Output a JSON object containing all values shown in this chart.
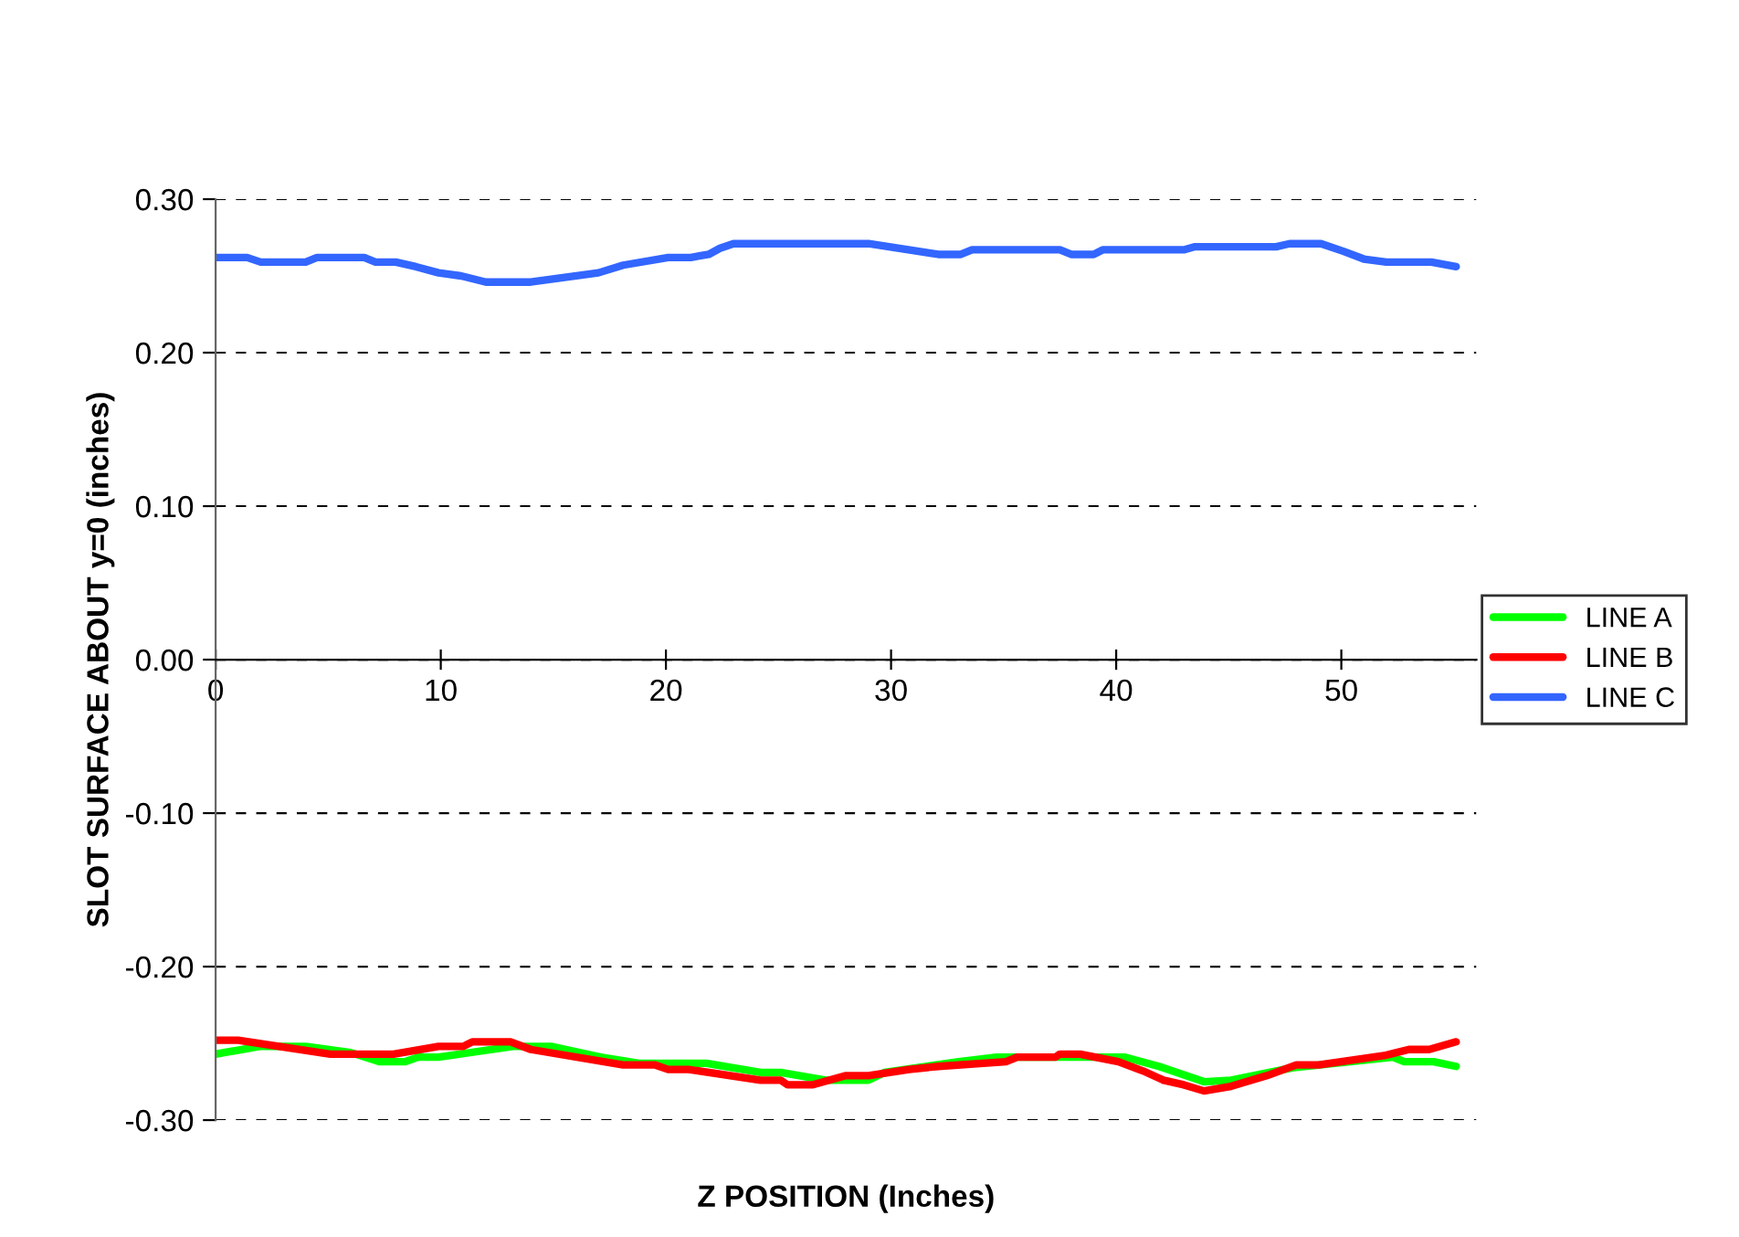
{
  "chart_data": {
    "type": "line",
    "xlabel": "Z POSITION (Inches)",
    "ylabel": "SLOT SURFACE ABOUT y=0 (inches)",
    "xlim": [
      0,
      56
    ],
    "xticks": [
      0,
      10,
      20,
      30,
      40,
      50
    ],
    "ylim": [
      -0.3,
      0.3
    ],
    "yticks": [
      {
        "value": -0.3,
        "label": "-0.30"
      },
      {
        "value": -0.2,
        "label": "-0.20"
      },
      {
        "value": -0.1,
        "label": "-0.10"
      },
      {
        "value": 0,
        "label": "0.00"
      },
      {
        "value": 0.1,
        "label": "0.10"
      },
      {
        "value": 0.2,
        "label": "0.20"
      },
      {
        "value": 0.3,
        "label": "0.30"
      }
    ],
    "grid": "y",
    "legend": "right",
    "marker": "none",
    "line_style": "solid",
    "series": [
      {
        "name": "LINE A",
        "color": "#00ff00",
        "x": [
          0,
          1.95,
          4.0,
          6.0,
          7.3,
          8.4,
          9.0,
          9.9,
          13.2,
          14.9,
          17.1,
          18.8,
          21.8,
          24.2,
          25.1,
          27.1,
          29.0,
          29.7,
          33.0,
          34.7,
          40.4,
          41.9,
          43.9,
          45.1,
          47.8,
          52.3,
          52.8,
          54.1,
          55.1
        ],
        "values": [
          -0.257,
          -0.252,
          -0.252,
          -0.256,
          -0.262,
          -0.262,
          -0.259,
          -0.259,
          -0.252,
          -0.252,
          -0.259,
          -0.263,
          -0.263,
          -0.269,
          -0.269,
          -0.274,
          -0.274,
          -0.269,
          -0.262,
          -0.259,
          -0.259,
          -0.265,
          -0.275,
          -0.274,
          -0.266,
          -0.259,
          -0.262,
          -0.262,
          -0.265
        ]
      },
      {
        "name": "LINE B",
        "color": "#ff0000",
        "x": [
          0,
          1.0,
          5.1,
          7.9,
          9.9,
          11.0,
          11.4,
          13.1,
          14.0,
          18.1,
          19.5,
          20.1,
          21.0,
          24.2,
          25.1,
          25.4,
          26.5,
          28.0,
          29.0,
          30.8,
          32.1,
          35.1,
          35.6,
          37.3,
          37.5,
          38.4,
          40.1,
          41.2,
          42.1,
          43.0,
          43.9,
          45.1,
          46.7,
          48.0,
          49.0,
          51.9,
          53.0,
          53.9,
          55.1
        ],
        "values": [
          -0.248,
          -0.248,
          -0.257,
          -0.257,
          -0.252,
          -0.252,
          -0.249,
          -0.249,
          -0.254,
          -0.264,
          -0.264,
          -0.267,
          -0.267,
          -0.274,
          -0.274,
          -0.277,
          -0.277,
          -0.271,
          -0.271,
          -0.267,
          -0.265,
          -0.262,
          -0.259,
          -0.259,
          -0.257,
          -0.257,
          -0.262,
          -0.268,
          -0.274,
          -0.277,
          -0.281,
          -0.278,
          -0.271,
          -0.264,
          -0.264,
          -0.258,
          -0.254,
          -0.254,
          -0.249
        ]
      },
      {
        "name": "LINE C",
        "color": "#3366ff",
        "x": [
          0,
          1.4,
          2.0,
          4.0,
          4.5,
          6.6,
          7.1,
          8.0,
          8.9,
          9.9,
          10.9,
          12.0,
          14.0,
          17.0,
          18.1,
          20.1,
          21.1,
          21.9,
          22.4,
          23.0,
          29.0,
          32.1,
          33.1,
          33.6,
          37.5,
          38.0,
          39.0,
          39.4,
          43.0,
          43.5,
          47.1,
          47.7,
          49.1,
          50.1,
          51.0,
          52.0,
          54.0,
          55.1
        ],
        "values": [
          0.262,
          0.262,
          0.259,
          0.259,
          0.262,
          0.262,
          0.259,
          0.259,
          0.256,
          0.252,
          0.25,
          0.246,
          0.246,
          0.252,
          0.257,
          0.262,
          0.262,
          0.264,
          0.268,
          0.271,
          0.271,
          0.264,
          0.264,
          0.267,
          0.267,
          0.264,
          0.264,
          0.267,
          0.267,
          0.269,
          0.269,
          0.271,
          0.271,
          0.266,
          0.261,
          0.259,
          0.259,
          0.256
        ]
      }
    ]
  }
}
